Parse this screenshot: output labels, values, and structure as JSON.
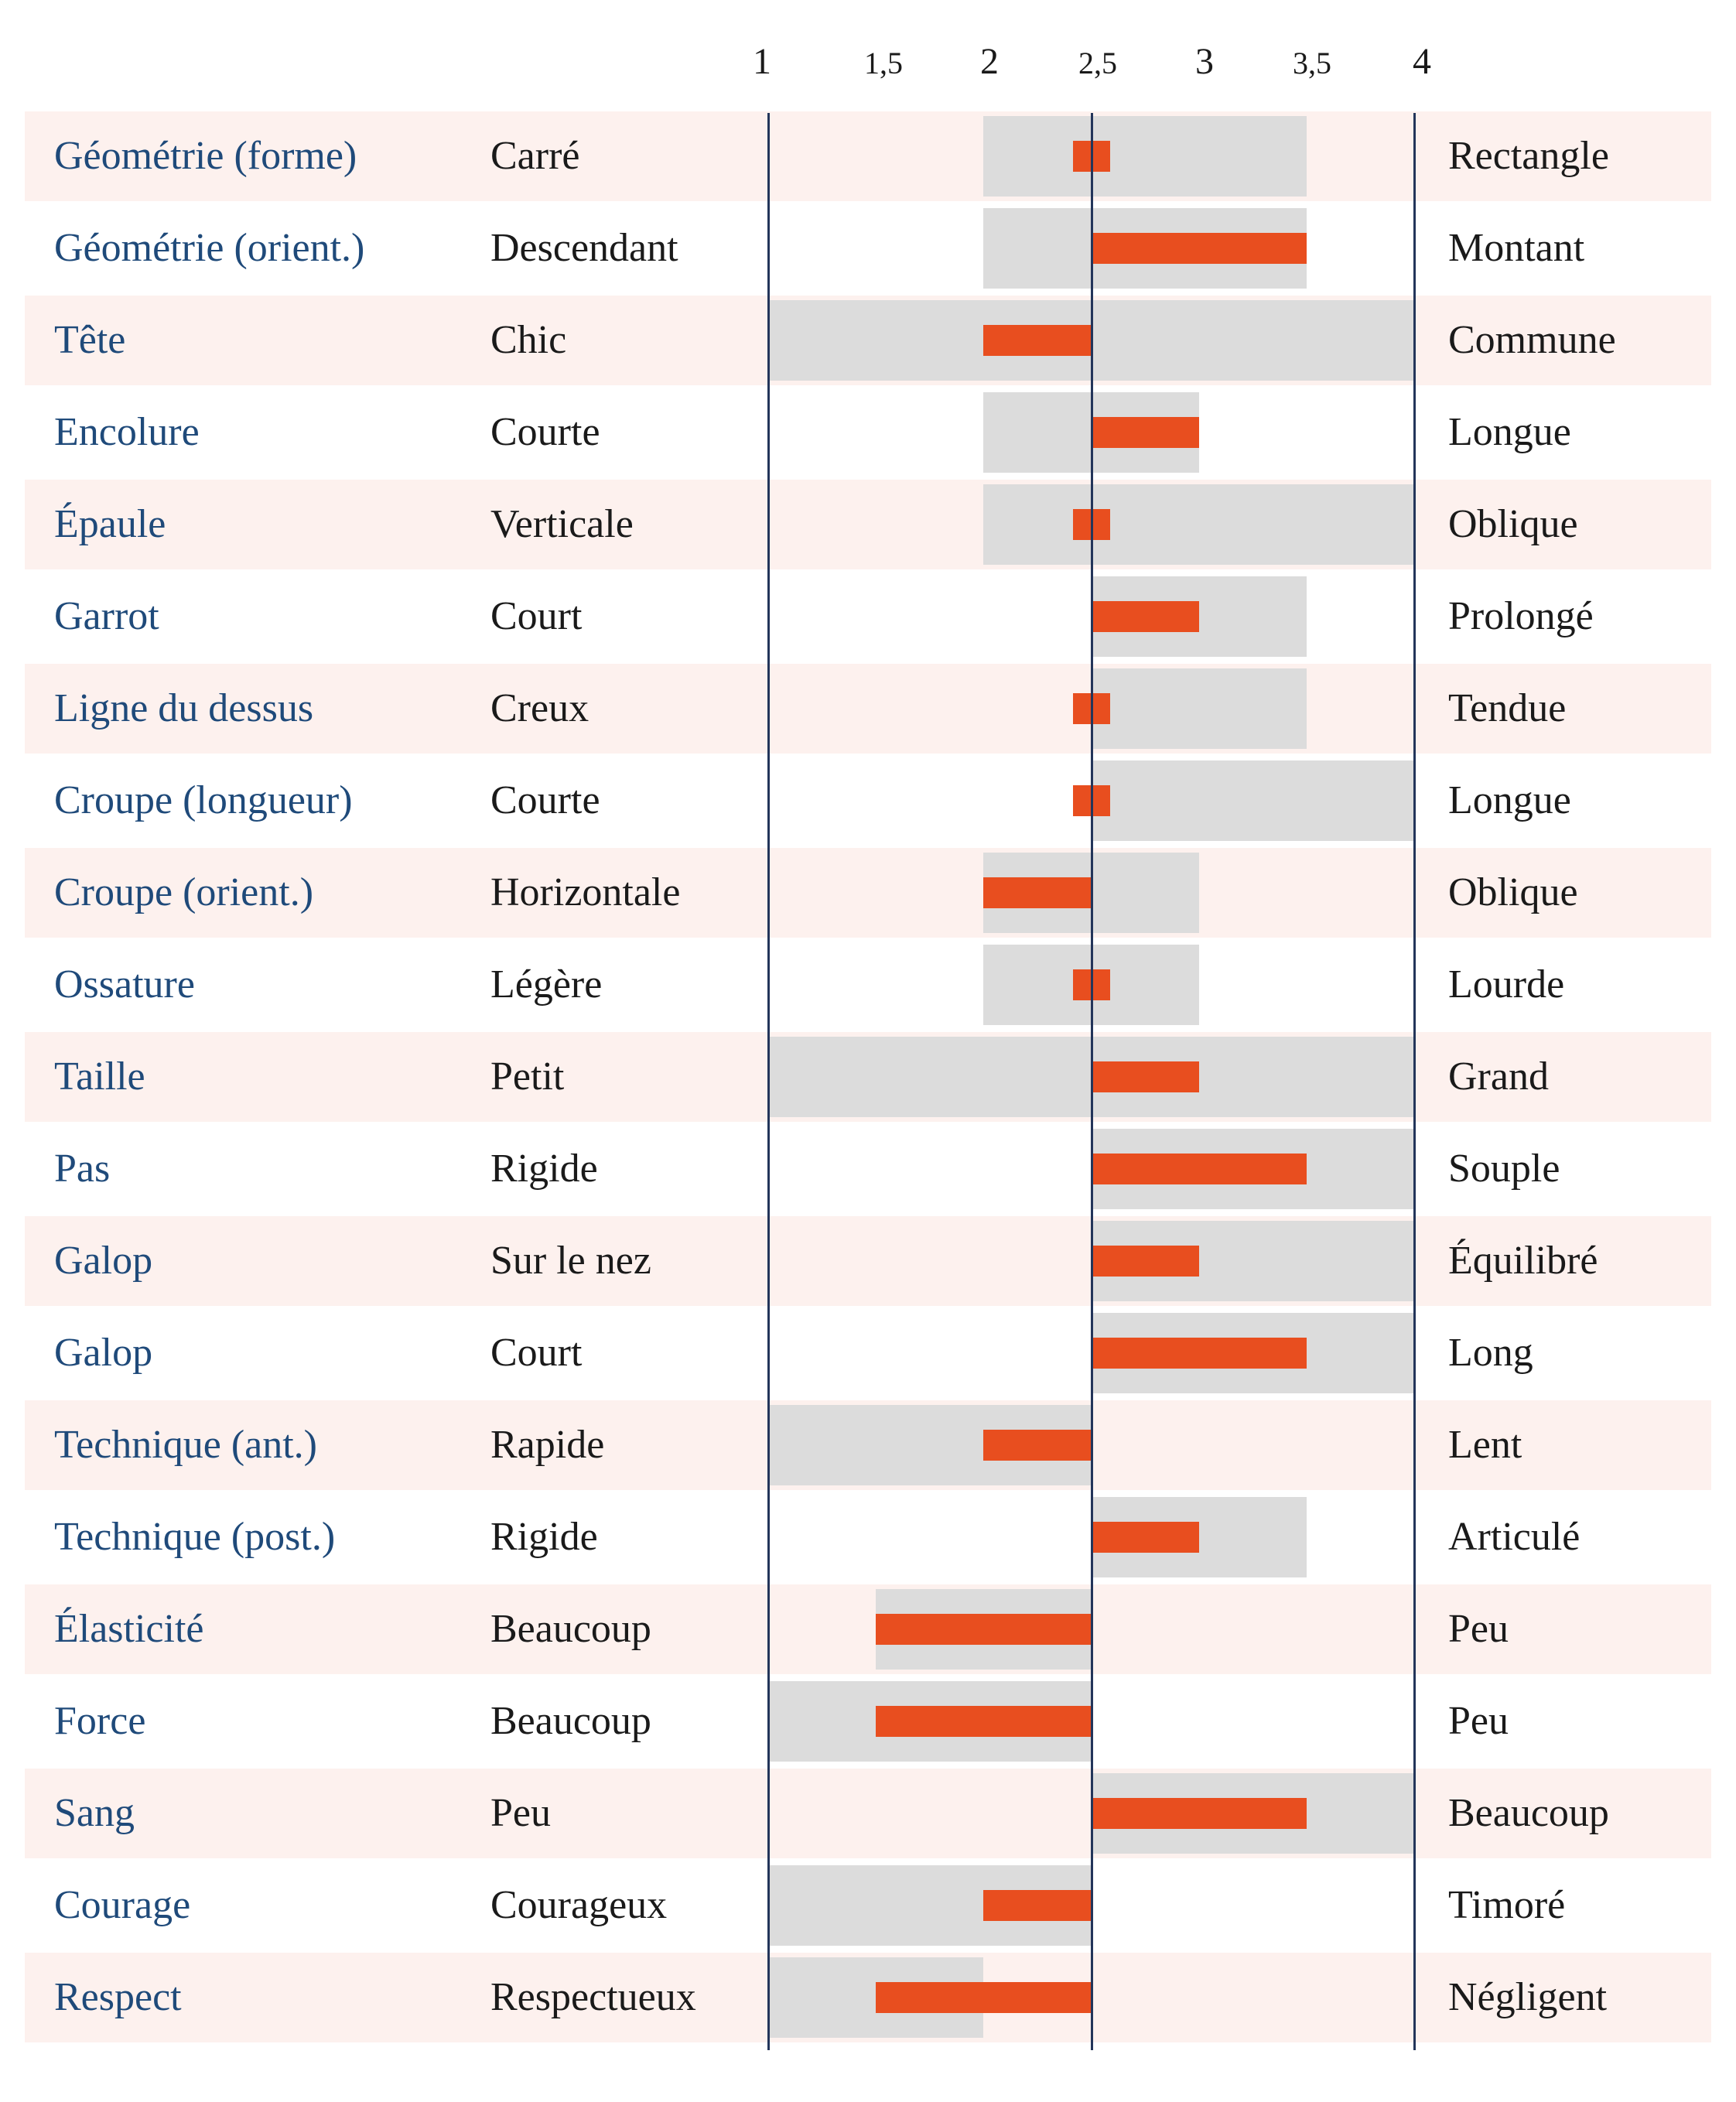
{
  "chart_data": {
    "type": "bar",
    "ticks": [
      "1",
      "1,5",
      "2",
      "2,5",
      "3",
      "3,5",
      "4"
    ],
    "xlim": [
      1,
      4
    ],
    "center": 2.5,
    "colors": {
      "bar": "#e84e1f",
      "range": "#dcdcdc",
      "attr": "#1f4a7a",
      "row_shade": "#fdf1ee",
      "axis_lines": "#23355a"
    },
    "rows": [
      {
        "attr": "Géométrie (forme)",
        "left": "Carré",
        "right": "Rectangle",
        "value": 2.6,
        "range": [
          2,
          3.5
        ]
      },
      {
        "attr": "Géométrie (orient.)",
        "left": "Descendant",
        "right": "Montant",
        "value": 3.5,
        "range": [
          2,
          3.5
        ]
      },
      {
        "attr": "Tête",
        "left": "Chic",
        "right": "Commune",
        "value": 2,
        "range": [
          1,
          4
        ]
      },
      {
        "attr": "Encolure",
        "left": "Courte",
        "right": "Longue",
        "value": 3,
        "range": [
          2,
          3
        ]
      },
      {
        "attr": "Épaule",
        "left": "Verticale",
        "right": "Oblique",
        "value": 2.6,
        "range": [
          2,
          4
        ]
      },
      {
        "attr": "Garrot",
        "left": "Court",
        "right": "Prolongé",
        "value": 3,
        "range": [
          2.5,
          3.5
        ]
      },
      {
        "attr": "Ligne du dessus",
        "left": "Creux",
        "right": "Tendue",
        "value": 2.6,
        "range": [
          2.5,
          3.5
        ]
      },
      {
        "attr": "Croupe (longueur)",
        "left": "Courte",
        "right": "Longue",
        "value": 2.6,
        "range": [
          2.5,
          4
        ]
      },
      {
        "attr": "Croupe (orient.)",
        "left": "Horizontale",
        "right": "Oblique",
        "value": 2,
        "range": [
          2,
          3
        ]
      },
      {
        "attr": "Ossature",
        "left": "Légère",
        "right": "Lourde",
        "value": 2.6,
        "range": [
          2,
          3
        ]
      },
      {
        "attr": "Taille",
        "left": "Petit",
        "right": "Grand",
        "value": 3,
        "range": [
          1,
          4
        ]
      },
      {
        "attr": "Pas",
        "left": "Rigide",
        "right": "Souple",
        "value": 3.5,
        "range": [
          2.5,
          4
        ]
      },
      {
        "attr": "Galop",
        "left": "Sur le nez",
        "right": "Équilibré",
        "value": 3,
        "range": [
          2.5,
          4
        ]
      },
      {
        "attr": "Galop",
        "left": "Court",
        "right": "Long",
        "value": 3.5,
        "range": [
          2.5,
          4
        ]
      },
      {
        "attr": "Technique (ant.)",
        "left": "Rapide",
        "right": "Lent",
        "value": 2,
        "range": [
          1,
          2.5
        ]
      },
      {
        "attr": "Technique (post.)",
        "left": "Rigide",
        "right": "Articulé",
        "value": 3,
        "range": [
          2.5,
          3.5
        ]
      },
      {
        "attr": "Élasticité",
        "left": "Beaucoup",
        "right": "Peu",
        "value": 1.5,
        "range": [
          1.5,
          2.5
        ]
      },
      {
        "attr": "Force",
        "left": "Beaucoup",
        "right": "Peu",
        "value": 1.5,
        "range": [
          1,
          2.5
        ]
      },
      {
        "attr": "Sang",
        "left": "Peu",
        "right": "Beaucoup",
        "value": 3.5,
        "range": [
          2.5,
          4
        ]
      },
      {
        "attr": "Courage",
        "left": "Courageux",
        "right": "Timoré",
        "value": 2,
        "range": [
          1,
          2.5
        ]
      },
      {
        "attr": "Respect",
        "left": "Respectueux",
        "right": "Négligent",
        "value": 1.5,
        "range": [
          1,
          2
        ]
      }
    ]
  }
}
